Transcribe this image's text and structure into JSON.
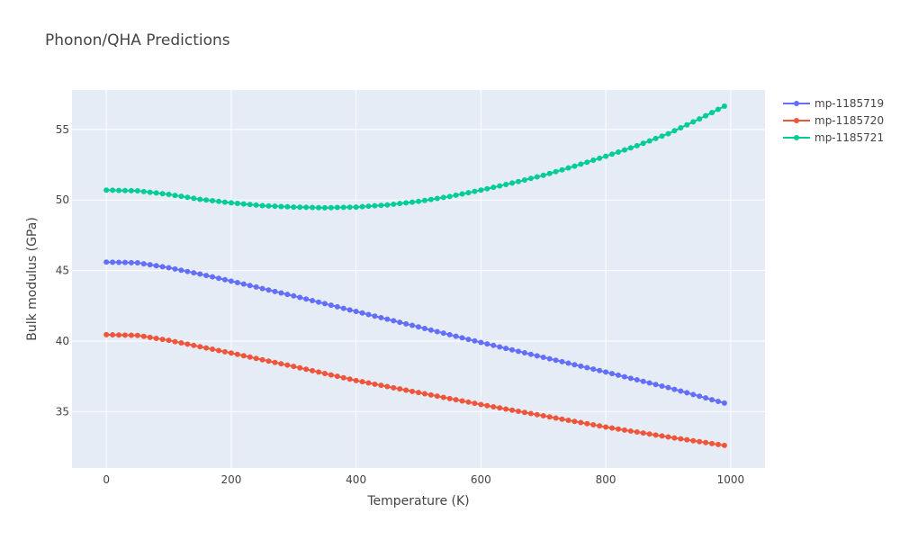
{
  "chart_data": {
    "type": "line",
    "title": "Phonon/QHA Predictions",
    "xlabel": "Temperature (K)",
    "ylabel": "Bulk modulus (GPa)",
    "xlim": [
      -55,
      1055
    ],
    "ylim": [
      31.0,
      57.8
    ],
    "x_ticks": [
      0,
      200,
      400,
      600,
      800,
      1000
    ],
    "y_ticks": [
      35,
      40,
      45,
      50,
      55
    ],
    "x_tick_labels": [
      "0",
      "200",
      "400",
      "600",
      "800",
      "1000"
    ],
    "y_tick_labels": [
      "35",
      "40",
      "45",
      "50",
      "55"
    ],
    "grid": true,
    "legend_position": "top-right",
    "background": "#E5ECF6",
    "x_start": 0,
    "x_step": 10,
    "x_end": 990,
    "series": [
      {
        "name": "mp-1185719",
        "color": "#636EFA",
        "anchors_x": [
          0,
          50,
          100,
          150,
          200,
          300,
          400,
          500,
          600,
          700,
          800,
          900,
          990
        ],
        "anchors_y": [
          45.6,
          45.55,
          45.2,
          44.75,
          44.25,
          43.2,
          42.1,
          41.0,
          39.9,
          38.85,
          37.8,
          36.7,
          35.6
        ]
      },
      {
        "name": "mp-1185720",
        "color": "#EF553B",
        "anchors_x": [
          0,
          50,
          100,
          150,
          200,
          300,
          400,
          500,
          600,
          700,
          800,
          900,
          990
        ],
        "anchors_y": [
          40.45,
          40.4,
          40.05,
          39.6,
          39.15,
          38.2,
          37.2,
          36.35,
          35.5,
          34.7,
          33.9,
          33.2,
          32.6
        ]
      },
      {
        "name": "mp-1185721",
        "color": "#00CC96",
        "anchors_x": [
          0,
          50,
          100,
          150,
          200,
          250,
          300,
          350,
          400,
          450,
          500,
          550,
          600,
          650,
          700,
          750,
          800,
          850,
          900,
          950,
          990
        ],
        "anchors_y": [
          50.7,
          50.65,
          50.4,
          50.05,
          49.8,
          49.6,
          49.5,
          49.45,
          49.5,
          49.65,
          49.9,
          50.25,
          50.7,
          51.2,
          51.75,
          52.4,
          53.1,
          53.85,
          54.7,
          55.75,
          56.65
        ]
      }
    ]
  }
}
